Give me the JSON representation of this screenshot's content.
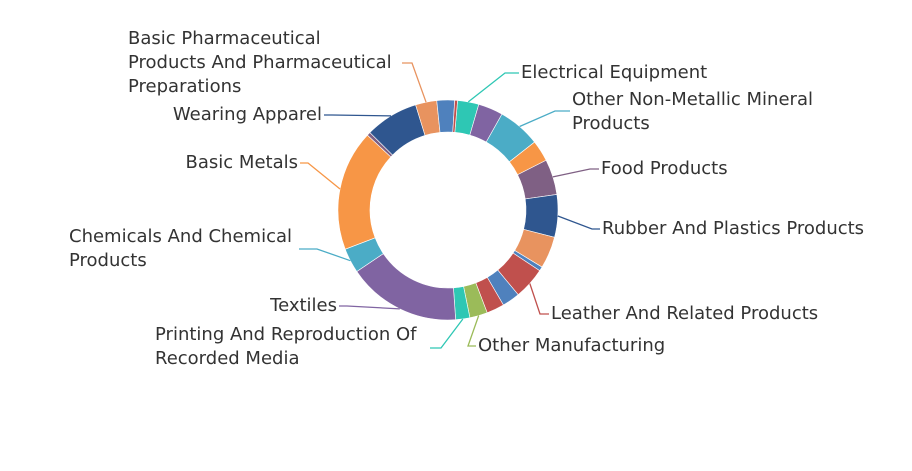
{
  "chart_data": {
    "type": "pie",
    "variant": "donut",
    "legend": "none",
    "slices": [
      {
        "label": "Electrical Equipment",
        "value": 3.0,
        "color": "#2ec7b4",
        "labeled": true
      },
      {
        "label": "",
        "value": 3.5,
        "color": "#8064a2",
        "labeled": false
      },
      {
        "label": "Other Non-Metallic Mineral Products",
        "value": 6.0,
        "color": "#4bacc6",
        "labeled": true
      },
      {
        "label": "",
        "value": 3.0,
        "color": "#f79646",
        "labeled": false
      },
      {
        "label": "Food Products",
        "value": 5.0,
        "color": "#7f6084",
        "labeled": true
      },
      {
        "label": "Rubber And Plastics Products",
        "value": 6.0,
        "color": "#2f568f",
        "labeled": true
      },
      {
        "label": "",
        "value": 4.5,
        "color": "#e8935f",
        "labeled": false
      },
      {
        "label": "",
        "value": 0.6,
        "color": "#4f81bd",
        "labeled": false
      },
      {
        "label": "Leather And Related Products",
        "value": 4.5,
        "color": "#c0504d",
        "labeled": true
      },
      {
        "label": "",
        "value": 2.5,
        "color": "#4f81bd",
        "labeled": false
      },
      {
        "label": "",
        "value": 2.5,
        "color": "#c0504d",
        "labeled": false
      },
      {
        "label": "Other Manufacturing",
        "value": 2.5,
        "color": "#9bbb59",
        "labeled": true
      },
      {
        "label": "Printing And Reproduction Of Recorded Media",
        "value": 2.0,
        "color": "#2ec7b4",
        "labeled": true
      },
      {
        "label": "Textiles",
        "value": 16.0,
        "color": "#8064a2",
        "labeled": true
      },
      {
        "label": "Chemicals And Chemical Products",
        "value": 3.5,
        "color": "#4bacc6",
        "labeled": true
      },
      {
        "label": "Basic Metals",
        "value": 17.0,
        "color": "#f79646",
        "labeled": true
      },
      {
        "label": "",
        "value": 0.5,
        "color": "#7f6084",
        "labeled": false
      },
      {
        "label": "Wearing Apparel",
        "value": 7.5,
        "color": "#2f568f",
        "labeled": true
      },
      {
        "label": "Basic Pharmaceutical Products And Pharmaceutical Preparations",
        "value": 3.0,
        "color": "#e8935f",
        "labeled": true
      },
      {
        "label": "",
        "value": 2.5,
        "color": "#4f81bd",
        "labeled": false
      },
      {
        "label": "",
        "value": 0.4,
        "color": "#c0504d",
        "labeled": false
      }
    ]
  }
}
